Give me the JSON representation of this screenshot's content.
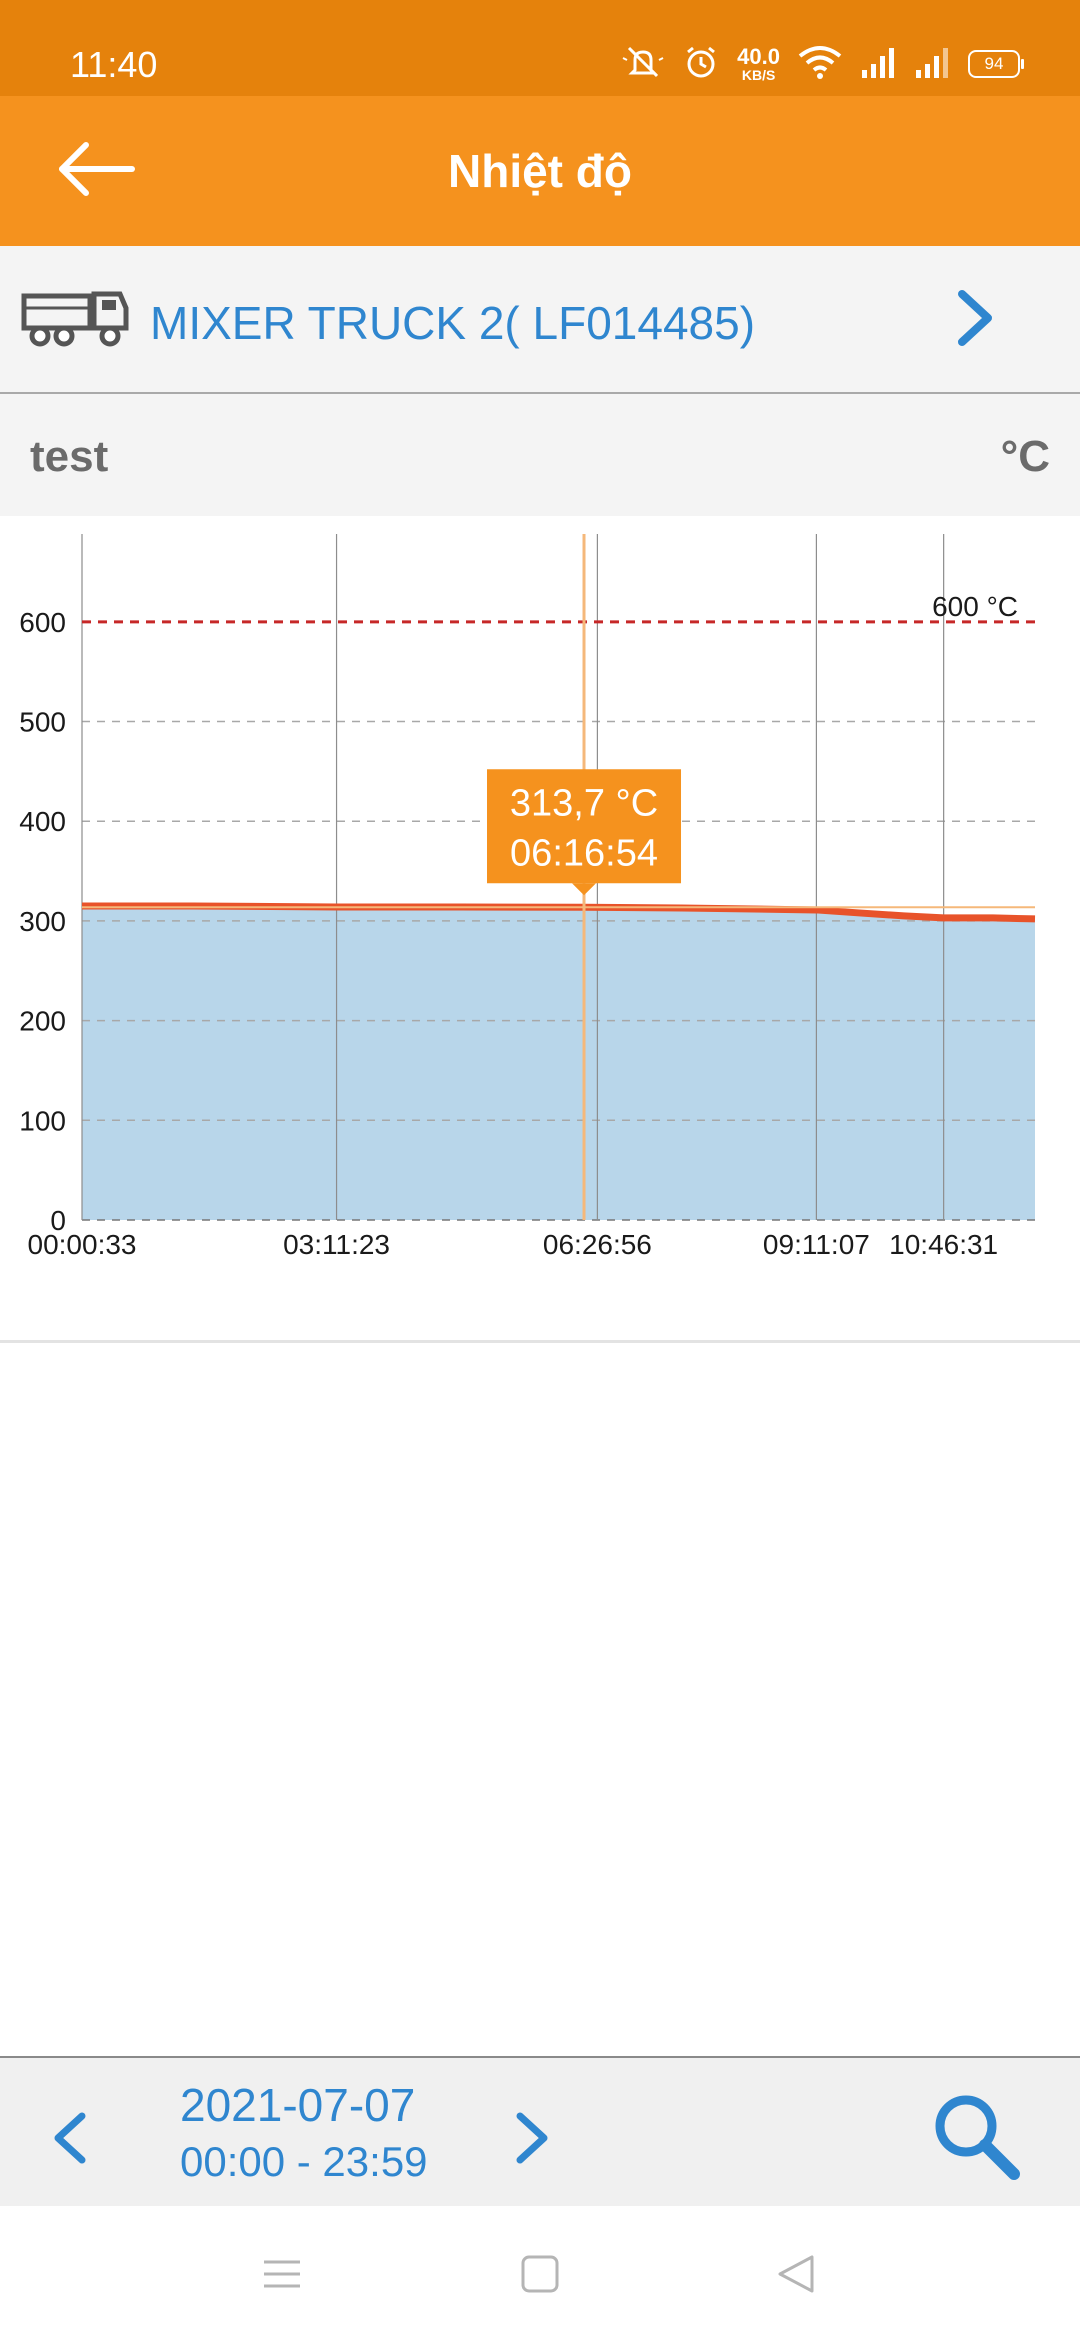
{
  "status_bar": {
    "time": "11:40",
    "net_speed_value": "40.0",
    "net_speed_unit": "KB/S",
    "battery": "94",
    "icons": [
      "mute-icon",
      "alarm-icon",
      "wifi-icon",
      "signal-icon",
      "signal-icon",
      "battery-icon"
    ]
  },
  "app_bar": {
    "title": "Nhiệt độ",
    "back_icon": "back-arrow-icon",
    "background": "#F5921E"
  },
  "vehicle": {
    "name": "MIXER TRUCK 2( LF014485)",
    "icon": "truck-icon",
    "chevron_icon": "chevron-right-icon",
    "color": "#2f86cf"
  },
  "sensor": {
    "name": "test",
    "unit": "°C"
  },
  "chart_data": {
    "type": "area",
    "x_tick_labels": [
      "00:00:33",
      "03:11:23",
      "06:26:56",
      "09:11:07",
      "10:46:31"
    ],
    "x_ticks_seconds": [
      33,
      11483,
      23216,
      33067,
      38791
    ],
    "x_range_seconds": [
      33,
      42900
    ],
    "y_ticks": [
      0,
      100,
      200,
      300,
      400,
      500,
      600
    ],
    "ylim": [
      0,
      660
    ],
    "series": [
      {
        "fill_color": "#B8D6EA",
        "line_color": "#E8532A",
        "points": [
          [
            33,
            315
          ],
          [
            5000,
            315
          ],
          [
            11483,
            314
          ],
          [
            17000,
            314
          ],
          [
            22614,
            313.7
          ],
          [
            27000,
            313
          ],
          [
            33067,
            311
          ],
          [
            35000,
            308
          ],
          [
            37000,
            305
          ],
          [
            38791,
            303
          ],
          [
            41000,
            303
          ],
          [
            42900,
            302
          ]
        ]
      }
    ],
    "threshold": {
      "value": 600,
      "label": "600 °C",
      "color": "#C62828"
    },
    "tooltip": {
      "x": 22614,
      "value_label": "313,7 °C",
      "time_label": "06:16:54",
      "color": "#F5921E"
    },
    "grid": true
  },
  "date_nav": {
    "date": "2021-07-07",
    "range": "00:00 - 23:59",
    "prev_icon": "chevron-left-icon",
    "next_icon": "chevron-right-icon",
    "search_icon": "search-icon"
  },
  "nav_bar": {
    "icons": [
      "menu-icon",
      "home-icon",
      "back-icon"
    ]
  }
}
